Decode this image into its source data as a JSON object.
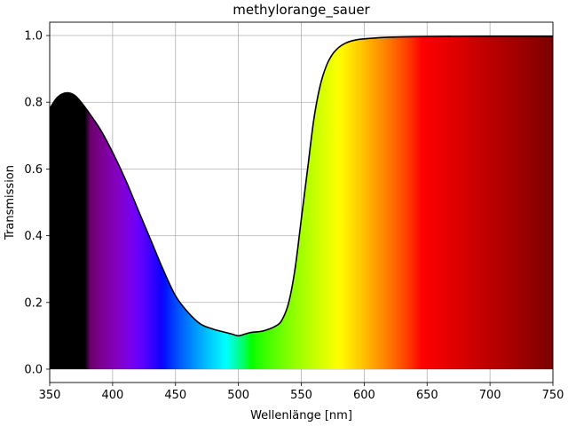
{
  "chart_data": {
    "type": "line",
    "title": "methylorange_sauer",
    "xlabel": "Wellenlänge [nm]",
    "ylabel": "Transmission",
    "xlim": [
      350,
      750
    ],
    "ylim": [
      -0.04,
      1.04
    ],
    "grid": true,
    "x_ticks": [
      350,
      400,
      450,
      500,
      550,
      600,
      650,
      700,
      750
    ],
    "x_tick_labels": [
      "350",
      "400",
      "450",
      "500",
      "550",
      "600",
      "650",
      "700",
      "750"
    ],
    "y_ticks": [
      0.0,
      0.2,
      0.4,
      0.6,
      0.8,
      1.0
    ],
    "y_tick_labels": [
      "0.0",
      "0.2",
      "0.4",
      "0.6",
      "0.8",
      "1.0"
    ],
    "fill": "visible spectrum colors under the curve",
    "line_color": "#000000",
    "series": [
      {
        "x": [
          350,
          355,
          360,
          365,
          370,
          375,
          380,
          390,
          400,
          410,
          420,
          430,
          440,
          450,
          460,
          470,
          480,
          490,
          495,
          500,
          505,
          510,
          520,
          530,
          535,
          540,
          545,
          550,
          555,
          560,
          565,
          570,
          575,
          580,
          585,
          590,
          595,
          600,
          610,
          620,
          650,
          700,
          750
        ],
        "y": [
          0.78,
          0.81,
          0.825,
          0.828,
          0.82,
          0.8,
          0.775,
          0.72,
          0.65,
          0.57,
          0.48,
          0.39,
          0.3,
          0.22,
          0.17,
          0.135,
          0.12,
          0.11,
          0.105,
          0.1,
          0.105,
          0.11,
          0.115,
          0.13,
          0.15,
          0.2,
          0.3,
          0.45,
          0.6,
          0.75,
          0.85,
          0.91,
          0.945,
          0.965,
          0.977,
          0.984,
          0.988,
          0.99,
          0.993,
          0.995,
          0.997,
          0.998,
          0.998
        ]
      }
    ]
  }
}
